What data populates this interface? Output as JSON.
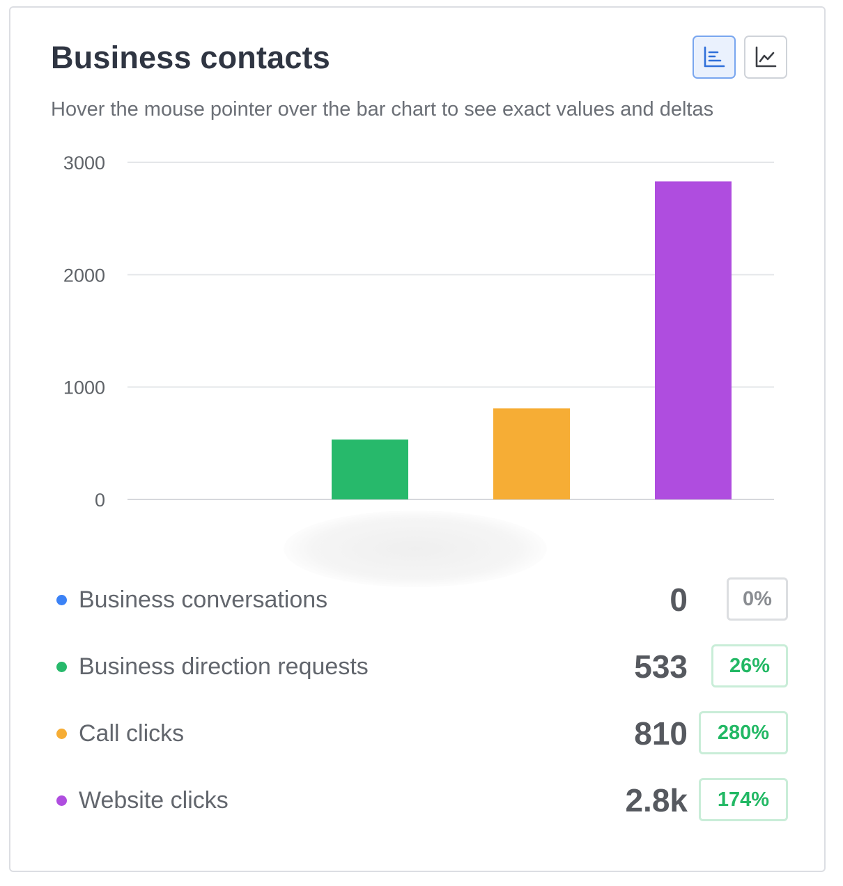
{
  "card": {
    "title": "Business contacts",
    "subtitle": "Hover the mouse pointer over the bar chart to see exact values and deltas",
    "view_toggle": {
      "active": "bar-chart-icon",
      "inactive": "line-chart-icon"
    }
  },
  "chart_data": {
    "type": "bar",
    "categories": [
      "Business conversations",
      "Business direction requests",
      "Call clicks",
      "Website clicks"
    ],
    "values": [
      0,
      533,
      810,
      2830
    ],
    "colors": [
      "#3b82f6",
      "#27b96b",
      "#f6ad35",
      "#af4ddf"
    ],
    "yticks": [
      "0",
      "1000",
      "2000",
      "3000"
    ],
    "ylim": [
      0,
      3000
    ],
    "grid": true,
    "title": "",
    "xlabel": "",
    "ylabel": ""
  },
  "legend": [
    {
      "label": "Business conversations",
      "value": "0",
      "delta": "0%",
      "color": "#3b82f6",
      "delta_kind": "neutral"
    },
    {
      "label": "Business direction requests",
      "value": "533",
      "delta": "26%",
      "color": "#27b96b",
      "delta_kind": "positive"
    },
    {
      "label": "Call clicks",
      "value": "810",
      "delta": "280%",
      "color": "#f6ad35",
      "delta_kind": "positive"
    },
    {
      "label": "Website clicks",
      "value": "2.8k",
      "delta": "174%",
      "color": "#af4ddf",
      "delta_kind": "positive"
    }
  ]
}
